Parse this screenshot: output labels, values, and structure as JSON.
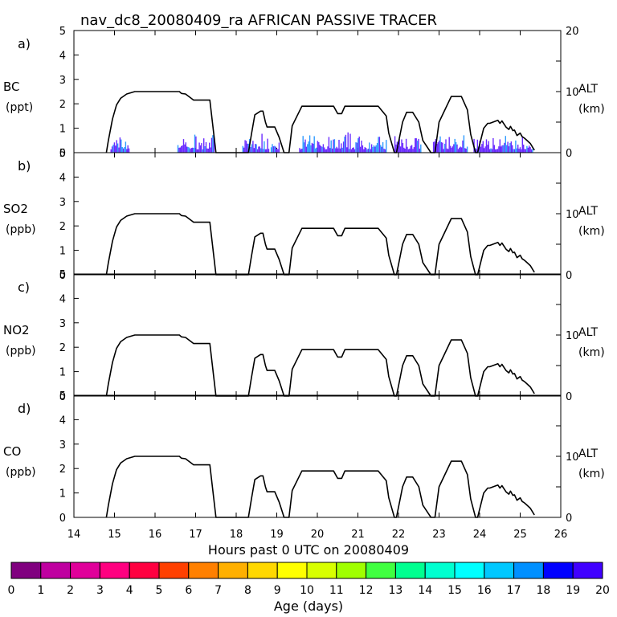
{
  "title": "nav_dc8_20080409_ra AFRICAN PASSIVE TRACER",
  "xlabel": "Hours past 0 UTC on 20080409",
  "x_ticks": [
    "14",
    "15",
    "16",
    "17",
    "18",
    "19",
    "20",
    "21",
    "22",
    "23",
    "24",
    "25",
    "26"
  ],
  "panels": [
    {
      "letter": "a)",
      "species": "BC",
      "unit": "(ppt)"
    },
    {
      "letter": "b)",
      "species": "SO2",
      "unit": "(ppb)"
    },
    {
      "letter": "c)",
      "species": "NO2",
      "unit": "(ppb)"
    },
    {
      "letter": "d)",
      "species": "CO",
      "unit": "(ppb)"
    }
  ],
  "left_ticks": [
    "0",
    "1",
    "2",
    "3",
    "4",
    "5"
  ],
  "right_axis": {
    "label": "ALT",
    "unit": "(km)",
    "tick_top": "20",
    "tick_mid": "10",
    "tick_bottom": "0"
  },
  "colorbar": {
    "label": "Age (days)",
    "ticks": [
      "0",
      "1",
      "2",
      "3",
      "4",
      "5",
      "6",
      "7",
      "8",
      "9",
      "10",
      "11",
      "12",
      "13",
      "14",
      "15",
      "16",
      "17",
      "18",
      "19",
      "20"
    ],
    "colors": [
      "#80007f",
      "#bf00a0",
      "#e0009a",
      "#ff0080",
      "#ff0040",
      "#ff4000",
      "#ff8000",
      "#ffb000",
      "#ffd800",
      "#ffff00",
      "#d8ff00",
      "#a0ff00",
      "#40ff40",
      "#00ff90",
      "#00ffd0",
      "#00ffff",
      "#00c8ff",
      "#0090ff",
      "#0000ff",
      "#4000ff"
    ]
  },
  "chart_data": {
    "type": "line",
    "x_range": [
      14,
      26
    ],
    "left_ylim": [
      0,
      5
    ],
    "right_ylim": [
      0,
      20
    ],
    "altitude_km": {
      "x": [
        14.8,
        14.85,
        14.95,
        15.05,
        15.15,
        15.3,
        15.5,
        15.6,
        16.0,
        16.6,
        16.65,
        16.75,
        16.85,
        16.95,
        17.35,
        17.5,
        17.65,
        18.3,
        18.38,
        18.46,
        18.6,
        18.66,
        18.72,
        18.76,
        18.95,
        19.06,
        19.18,
        19.3,
        19.38,
        19.62,
        20.3,
        20.4,
        20.5,
        20.6,
        20.68,
        21.4,
        21.5,
        21.7,
        21.76,
        21.9,
        21.95,
        22.1,
        22.2,
        22.35,
        22.5,
        22.6,
        22.8,
        22.9,
        23.0,
        23.3,
        23.38,
        23.55,
        23.7,
        23.78,
        23.9,
        23.95,
        24.1,
        24.2,
        24.25,
        24.45,
        24.5,
        24.55,
        24.65,
        24.72,
        24.76,
        24.82,
        24.86,
        24.92,
        25.0,
        25.05,
        25.1,
        25.15,
        25.25,
        25.35
      ],
      "y": [
        0,
        2,
        5.5,
        7.8,
        8.9,
        9.6,
        10,
        10,
        10,
        10,
        9.7,
        9.6,
        9.1,
        8.6,
        8.6,
        0,
        0,
        0,
        3.2,
        6.2,
        6.8,
        6.8,
        5,
        4.2,
        4.2,
        2.5,
        0,
        0,
        4.4,
        7.6,
        7.6,
        7.6,
        6.4,
        6.4,
        7.6,
        7.6,
        7.6,
        6,
        3.2,
        0,
        0,
        5,
        6.6,
        6.6,
        5,
        2,
        0,
        0,
        5,
        9.2,
        9.2,
        9.2,
        7,
        3,
        0,
        0,
        4,
        4.8,
        4.8,
        5.3,
        4.8,
        5.2,
        4.2,
        3.8,
        4.3,
        3.6,
        3.7,
        2.8,
        3.2,
        2.6,
        2.4,
        2.1,
        1.5,
        0.4
      ]
    },
    "tracer_bars": {
      "panel": "BC",
      "intervals": [
        [
          14.9,
          15.35
        ],
        [
          16.55,
          17.45
        ],
        [
          18.15,
          18.8
        ],
        [
          18.85,
          19.05
        ],
        [
          19.55,
          21.7
        ],
        [
          21.9,
          22.55
        ],
        [
          22.85,
          23.7
        ],
        [
          23.85,
          25.3
        ]
      ],
      "max_ppt": 0.9
    }
  }
}
